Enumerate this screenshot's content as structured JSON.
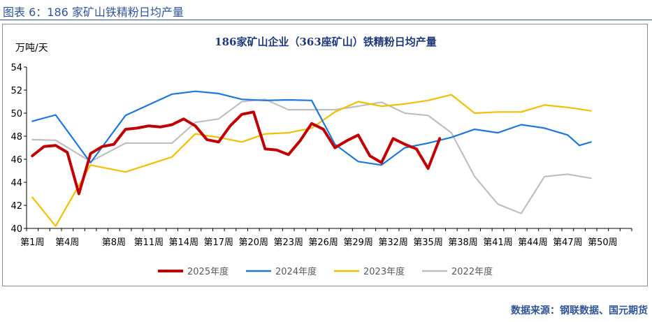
{
  "figure_label": "图表 6：186 家矿山铁精粉日均产量",
  "source": "数据来源：钢联数据、国元期货",
  "chart_data": {
    "type": "line",
    "title": "186家矿山企业（363座矿山）铁精粉日均产量",
    "ylabel": "万吨/天",
    "xlabel": "",
    "ylim": [
      40,
      54
    ],
    "yticks": [
      40,
      42,
      44,
      46,
      48,
      50,
      52,
      54
    ],
    "x_count": 52,
    "xtick_labels": [
      "第1周",
      "第4周",
      "第8周",
      "第11周",
      "第14周",
      "第17周",
      "第20周",
      "第23周",
      "第26周",
      "第29周",
      "第32周",
      "第35周",
      "第38周",
      "第41周",
      "第44周",
      "第47周",
      "第50周"
    ],
    "legend_position": "bottom",
    "series": [
      {
        "name": "2025年度",
        "color": "#C00000",
        "values": [
          46.3,
          47.1,
          47.2,
          46.6,
          43.0,
          46.5,
          47.1,
          47.3,
          48.6,
          48.7,
          48.9,
          48.8,
          49.0,
          49.5,
          48.9,
          47.7,
          47.5,
          48.9,
          49.9,
          50.1,
          46.9,
          46.8,
          46.4,
          47.6,
          49.1,
          48.6,
          47.0,
          47.6,
          48.1,
          46.3,
          45.7,
          47.8,
          47.3,
          46.9,
          45.2,
          47.8
        ]
      },
      {
        "name": "2024年度",
        "color": "#1F78D9",
        "values": [
          49.3,
          null,
          49.85,
          null,
          null,
          45.7,
          null,
          null,
          49.8,
          null,
          null,
          null,
          51.65,
          null,
          51.9,
          null,
          51.7,
          null,
          51.2,
          null,
          51.1,
          null,
          51.15,
          null,
          51.1,
          null,
          47.3,
          null,
          45.8,
          null,
          45.5,
          null,
          47.0,
          null,
          47.4,
          null,
          47.9,
          null,
          48.6,
          null,
          48.3,
          null,
          49.0,
          null,
          48.7,
          null,
          48.1,
          47.2,
          47.5
        ]
      },
      {
        "name": "2023年度",
        "color": "#F0C000",
        "values": [
          42.7,
          null,
          40.2,
          null,
          null,
          45.5,
          null,
          null,
          44.9,
          null,
          null,
          null,
          46.2,
          null,
          48.2,
          null,
          47.9,
          null,
          47.5,
          null,
          48.2,
          null,
          48.3,
          null,
          48.7,
          null,
          50.1,
          null,
          51.0,
          null,
          50.6,
          null,
          50.8,
          null,
          51.1,
          null,
          51.6,
          null,
          50.0,
          null,
          50.1,
          null,
          50.1,
          null,
          50.7,
          null,
          50.5,
          null,
          50.2
        ]
      },
      {
        "name": "2022年度",
        "color": "#BFBFBF",
        "values": [
          47.7,
          null,
          47.65,
          null,
          null,
          45.8,
          null,
          null,
          47.4,
          null,
          null,
          null,
          47.4,
          null,
          49.2,
          null,
          49.5,
          null,
          51.0,
          null,
          51.2,
          null,
          50.3,
          null,
          50.3,
          null,
          50.3,
          null,
          50.6,
          null,
          50.95,
          null,
          50.0,
          null,
          49.8,
          null,
          48.3,
          null,
          44.5,
          null,
          42.1,
          null,
          41.3,
          null,
          44.5,
          null,
          44.7,
          null,
          44.35
        ]
      }
    ]
  }
}
